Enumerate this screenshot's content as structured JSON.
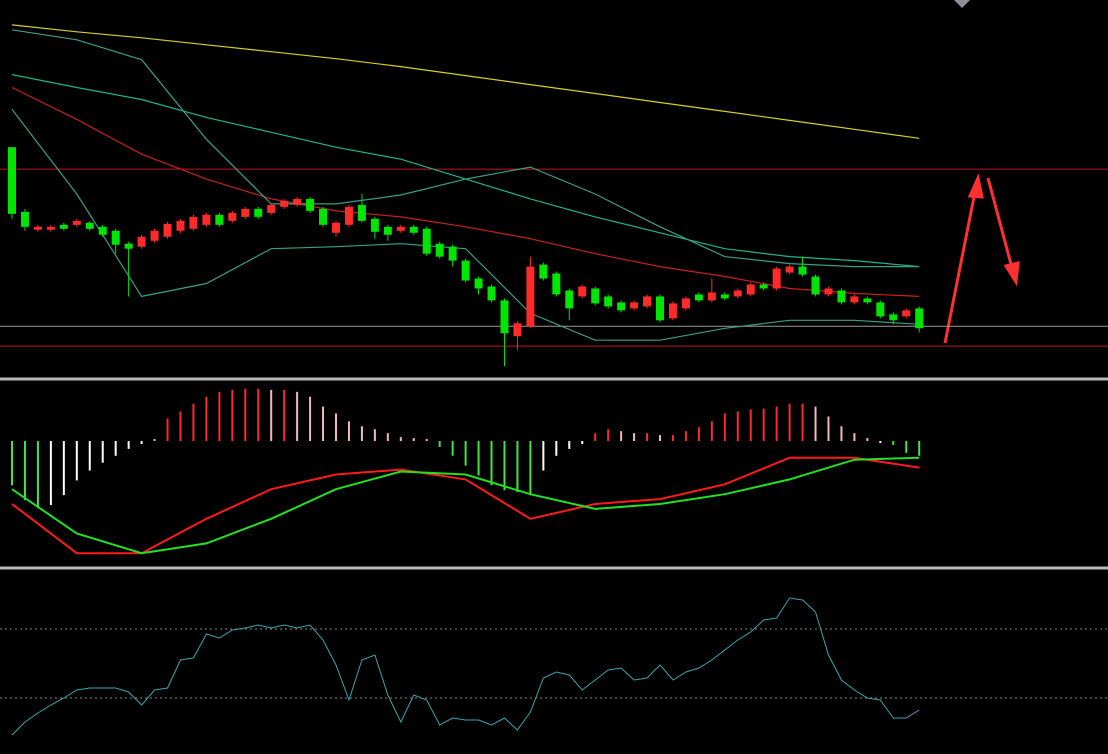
{
  "chart_data": [
    {
      "type": "candlestick",
      "ylim": [
        0,
        380
      ],
      "up_color": "#ff2a2a",
      "down_color": "#00e600",
      "open": [
        232,
        167,
        149,
        149,
        154,
        154,
        156,
        152,
        148,
        135,
        132,
        138,
        142,
        148,
        150,
        154,
        164,
        158,
        162,
        170,
        166,
        172,
        174,
        180,
        170,
        146,
        154,
        174,
        160,
        152,
        148,
        152,
        150,
        135,
        132,
        118,
        100,
        92,
        78,
        42,
        52,
        114,
        105,
        88,
        82,
        90,
        82,
        76,
        70,
        72,
        82,
        60,
        70,
        84,
        78,
        84,
        82,
        84,
        94,
        90,
        106,
        112,
        102,
        84,
        88,
        76,
        80,
        76,
        64,
        62,
        70
      ],
      "high": [
        232,
        170,
        154,
        154,
        156,
        160,
        158,
        154,
        150,
        137,
        144,
        150,
        157,
        160,
        164,
        166,
        166,
        168,
        172,
        172,
        176,
        180,
        182,
        182,
        172,
        158,
        174,
        185,
        162,
        154,
        154,
        154,
        152,
        137,
        134,
        120,
        102,
        94,
        80,
        57,
        122,
        116,
        107,
        90,
        94,
        92,
        84,
        78,
        78,
        84,
        84,
        77,
        82,
        86,
        100,
        86,
        90,
        96,
        96,
        112,
        114,
        122,
        104,
        92,
        90,
        84,
        82,
        78,
        66,
        70,
        72
      ],
      "low": [
        160,
        148,
        147,
        147,
        148,
        152,
        148,
        142,
        125,
        82,
        130,
        136,
        140,
        146,
        148,
        152,
        152,
        156,
        160,
        160,
        164,
        170,
        172,
        166,
        152,
        142,
        152,
        156,
        140,
        138,
        146,
        144,
        123,
        120,
        112,
        96,
        84,
        76,
        12,
        28,
        50,
        98,
        82,
        58,
        80,
        73,
        70,
        66,
        68,
        70,
        56,
        58,
        68,
        76,
        76,
        78,
        80,
        82,
        88,
        88,
        104,
        102,
        82,
        82,
        74,
        74,
        74,
        60,
        54,
        60,
        46
      ],
      "close": [
        165,
        152,
        152,
        152,
        150,
        158,
        150,
        144,
        134,
        130,
        142,
        148,
        155,
        158,
        162,
        164,
        154,
        166,
        170,
        162,
        174,
        178,
        180,
        168,
        154,
        156,
        172,
        158,
        147,
        144,
        152,
        146,
        125,
        122,
        118,
        98,
        90,
        78,
        45,
        55,
        112,
        100,
        84,
        70,
        92,
        75,
        72,
        68,
        76,
        82,
        58,
        75,
        80,
        78,
        86,
        80,
        88,
        94,
        90,
        110,
        112,
        104,
        84,
        90,
        76,
        82,
        76,
        62,
        58,
        68,
        50
      ],
      "line_x": [
        0,
        5,
        10,
        15,
        20,
        25,
        30,
        35,
        40,
        45,
        50,
        55,
        60,
        65,
        70
      ],
      "series": [
        {
          "color": "#d6cf2a",
          "values": [
            355,
            348,
            342,
            335,
            328,
            321,
            313,
            304,
            295,
            286,
            277,
            268,
            259,
            250,
            241
          ]
        },
        {
          "color": "#1fb58a",
          "values": [
            305,
            292,
            280,
            262,
            247,
            232,
            220,
            200,
            180,
            162,
            146,
            130,
            122,
            118,
            112
          ]
        },
        {
          "color": "#c8201c",
          "values": [
            292,
            260,
            225,
            200,
            180,
            168,
            162,
            152,
            140,
            125,
            112,
            102,
            90,
            85,
            82
          ]
        },
        {
          "color": "#3a9e86",
          "values": [
            350,
            340,
            320,
            240,
            175,
            175,
            184,
            200,
            212,
            185,
            152,
            122,
            115,
            112,
            112
          ]
        },
        {
          "color": "#3a9e86",
          "values": [
            270,
            185,
            82,
            95,
            130,
            132,
            135,
            130,
            65,
            38,
            38,
            50,
            58,
            58,
            54
          ]
        }
      ],
      "levels": [
        {
          "value": 210,
          "color": "#c0161a"
        },
        {
          "value": 52,
          "color": "#9a9a9a"
        },
        {
          "value": 32,
          "color": "#c0161a"
        }
      ]
    },
    {
      "type": "macd",
      "ylim": [
        -127,
        61
      ],
      "histogram": [
        -45,
        -60,
        -68,
        -65,
        -55,
        -40,
        -30,
        -22,
        -15,
        -8,
        -3,
        2,
        23,
        30,
        38,
        45,
        50,
        52,
        53,
        53,
        52,
        52,
        50,
        45,
        35,
        28,
        20,
        15,
        12,
        8,
        4,
        3,
        2,
        -6,
        -15,
        -25,
        -35,
        -45,
        -50,
        -52,
        -55,
        -30,
        -15,
        -8,
        -3,
        8,
        12,
        10,
        8,
        8,
        6,
        6,
        10,
        14,
        20,
        28,
        30,
        32,
        33,
        35,
        38,
        38,
        35,
        25,
        15,
        8,
        3,
        -2,
        -4,
        -12,
        -15
      ],
      "bar_colors": {
        "up_grow": "#ff2a2a",
        "up_shrink": "#f4b6c0",
        "down_grow": "#3fe83f",
        "down_shrink": "#ffffff"
      },
      "line_x": [
        0,
        5,
        10,
        15,
        20,
        25,
        30,
        35,
        40,
        45,
        50,
        55,
        60,
        65,
        70
      ],
      "series": [
        {
          "color": "#ff1a1a",
          "values": [
            -64,
            -114,
            -114,
            -79,
            -49,
            -34,
            -29,
            -39,
            -79,
            -64,
            -59,
            -44,
            -17,
            -17,
            -27
          ]
        },
        {
          "color": "#22e022",
          "values": [
            -49,
            -94,
            -114,
            -104,
            -79,
            -49,
            -31,
            -34,
            -54,
            -69,
            -64,
            -54,
            -39,
            -19,
            -17
          ]
        }
      ]
    },
    {
      "type": "line",
      "ylim": [
        0,
        184
      ],
      "color": "#3aa6b0",
      "values": [
        19,
        32,
        41,
        49,
        56,
        64,
        66,
        66,
        66,
        62,
        49,
        64,
        66,
        94,
        96,
        120,
        116,
        124,
        126,
        129,
        126,
        129,
        126,
        129,
        114,
        89,
        54,
        94,
        99,
        59,
        32,
        59,
        54,
        29,
        36,
        34,
        34,
        29,
        36,
        24,
        42,
        76,
        82,
        79,
        64,
        74,
        84,
        86,
        74,
        76,
        89,
        74,
        82,
        86,
        94,
        104,
        114,
        122,
        134,
        136,
        156,
        154,
        142,
        99,
        74,
        64,
        56,
        54,
        36,
        36,
        44
      ],
      "levels": [
        125,
        56
      ]
    }
  ]
}
